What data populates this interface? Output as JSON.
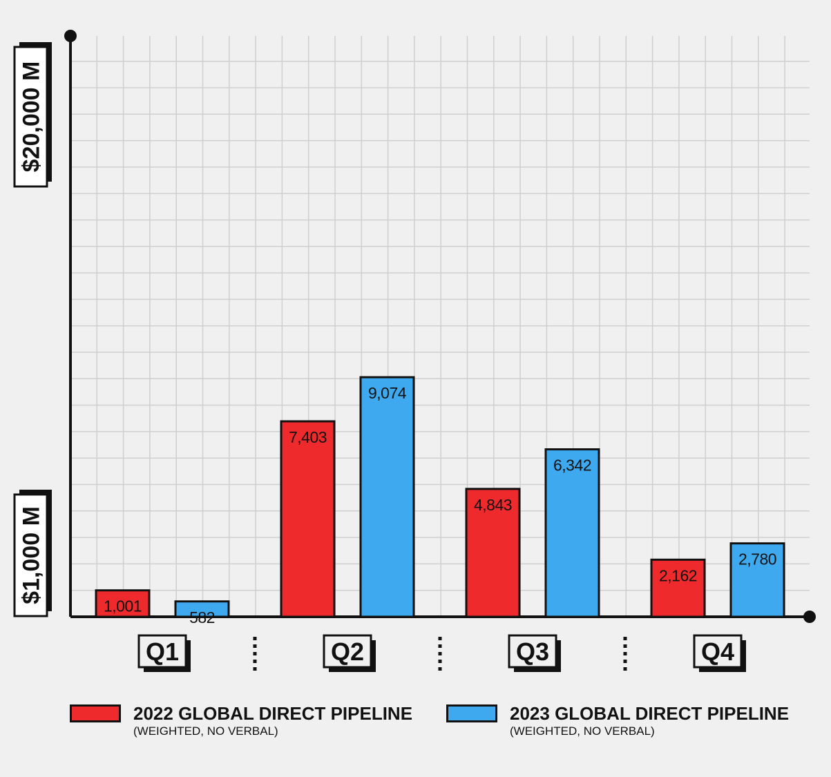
{
  "chart_data": {
    "type": "bar",
    "title": "",
    "categories": [
      "Q1",
      "Q2",
      "Q3",
      "Q4"
    ],
    "series": [
      {
        "name": "2022 GLOBAL DIRECT PIPELINE",
        "note": "(WEIGHTED, NO VERBAL)",
        "color": "#ee2a2d",
        "values": [
          1001,
          7403,
          4843,
          2162
        ],
        "labels": [
          "1,001",
          "7,403",
          "4,843",
          "2,162"
        ]
      },
      {
        "name": "2023 GLOBAL DIRECT PIPELINE",
        "note": "(WEIGHTED, NO VERBAL)",
        "color": "#3fa9f0",
        "values": [
          582,
          9074,
          6342,
          2780
        ],
        "labels": [
          "582",
          "9,074",
          "6,342",
          "2,780"
        ]
      }
    ],
    "y_axis_labels": {
      "low": "$1,000 M",
      "high": "$20,000 M"
    },
    "ylim": [
      0,
      22000
    ],
    "grid": true,
    "legend_position": "bottom"
  },
  "colors": {
    "background": "#f0f0f0",
    "grid": "#cfcfcf",
    "axis": "#111111"
  }
}
